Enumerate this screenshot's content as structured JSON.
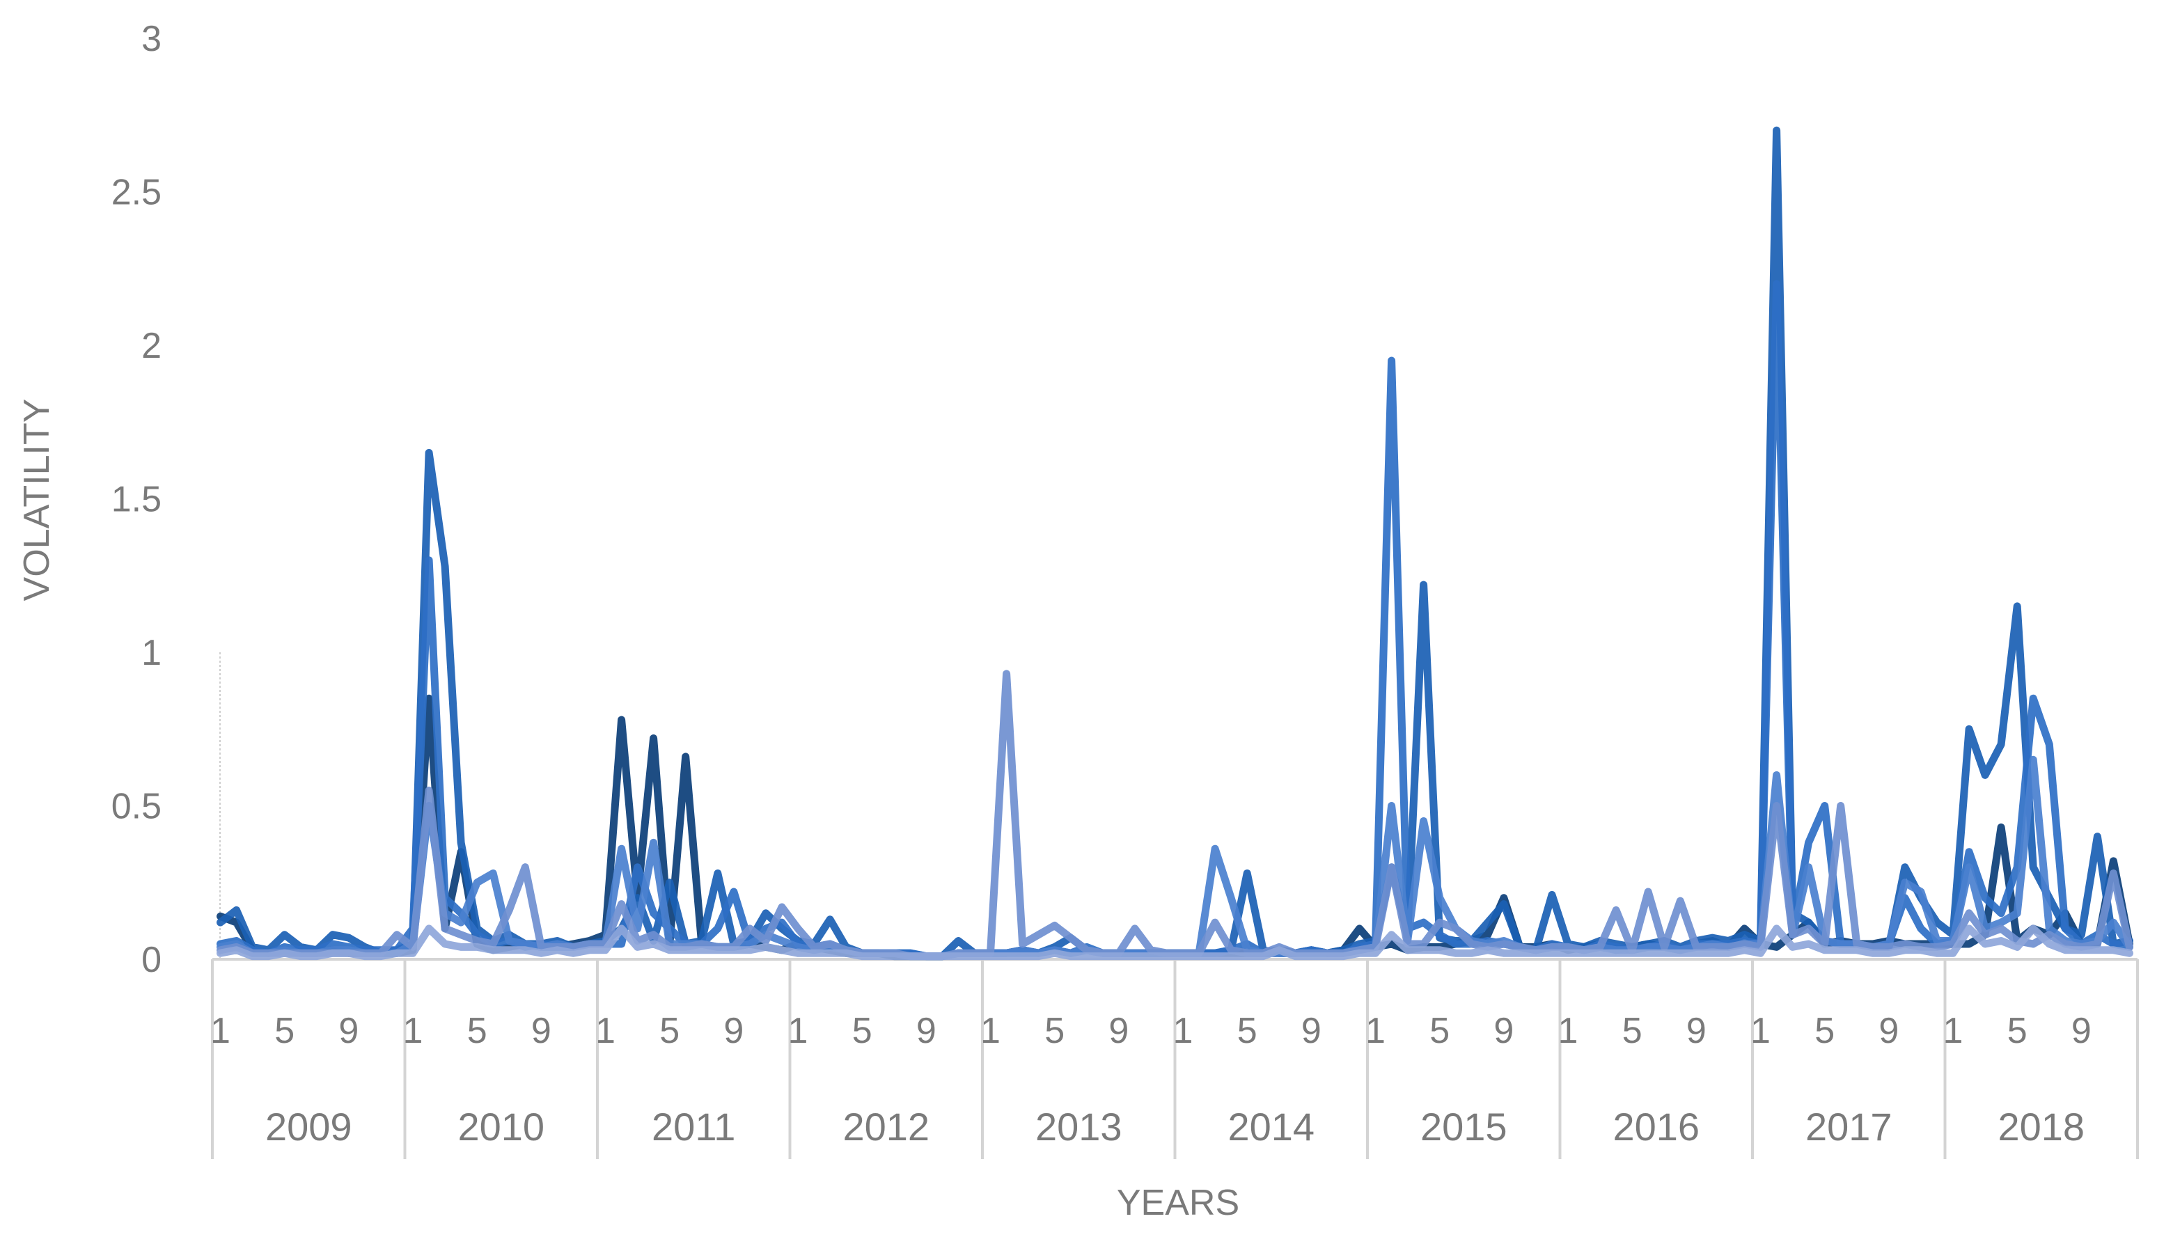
{
  "chart_data": {
    "type": "line",
    "title": "",
    "xlabel": "YEARS",
    "ylabel": "VOLATILITY",
    "ylim": [
      0,
      3
    ],
    "yticks": [
      "0",
      "0.5",
      "1",
      "1.5",
      "2",
      "2.5",
      "3"
    ],
    "years": [
      "2009",
      "2010",
      "2011",
      "2012",
      "2013",
      "2014",
      "2015",
      "2016",
      "2017",
      "2018"
    ],
    "month_ticks": [
      "1",
      "5",
      "9"
    ],
    "months_per_year": 12,
    "grid": false,
    "legend": "none",
    "colors": [
      "#0b3e78",
      "#1a5fb4",
      "#2e6fc6",
      "#4a80cf",
      "#6f8fd0",
      "#8ea6da",
      "#aebde3",
      "#c6d1ea"
    ],
    "series": [
      {
        "values": [
          0.14,
          0.12,
          0.03,
          0.02,
          0.03,
          0.02,
          0.02,
          0.03,
          0.02,
          0.02,
          0.02,
          0.02,
          0.03,
          0.85,
          0.1,
          0.35,
          0.05,
          0.03,
          0.04,
          0.05,
          0.04,
          0.04,
          0.05,
          0.06,
          0.08,
          0.78,
          0.2,
          0.72,
          0.05,
          0.66,
          0.05,
          0.04,
          0.04,
          0.05,
          0.04,
          0.03,
          0.05,
          0.04,
          0.03,
          0.02,
          0.02,
          0.02,
          0.01,
          0.01,
          0.01,
          0.01,
          0.02,
          0.02,
          0.02,
          0.02,
          0.03,
          0.02,
          0.03,
          0.02,
          0.03,
          0.02,
          0.02,
          0.02,
          0.02,
          0.02,
          0.02,
          0.02,
          0.02,
          0.02,
          0.02,
          0.02,
          0.03,
          0.02,
          0.03,
          0.02,
          0.03,
          0.1,
          0.04,
          0.05,
          0.03,
          0.04,
          0.04,
          0.05,
          0.06,
          0.08,
          0.2,
          0.04,
          0.04,
          0.05,
          0.03,
          0.04,
          0.05,
          0.03,
          0.04,
          0.05,
          0.04,
          0.03,
          0.05,
          0.06,
          0.04,
          0.1,
          0.05,
          0.04,
          0.08,
          0.12,
          0.05,
          0.06,
          0.05,
          0.05,
          0.06,
          0.05,
          0.05,
          0.05,
          0.05,
          0.05,
          0.08,
          0.43,
          0.06,
          0.1,
          0.08,
          0.15,
          0.05,
          0.05,
          0.32,
          0.05
        ]
      },
      {
        "values": [
          0.12,
          0.16,
          0.04,
          0.03,
          0.08,
          0.04,
          0.03,
          0.08,
          0.07,
          0.04,
          0.02,
          0.03,
          0.05,
          1.65,
          1.28,
          0.38,
          0.1,
          0.06,
          0.08,
          0.05,
          0.05,
          0.06,
          0.04,
          0.05,
          0.06,
          0.1,
          0.2,
          0.06,
          0.25,
          0.05,
          0.06,
          0.28,
          0.05,
          0.06,
          0.15,
          0.1,
          0.06,
          0.05,
          0.13,
          0.04,
          0.02,
          0.02,
          0.02,
          0.02,
          0.01,
          0.01,
          0.06,
          0.02,
          0.02,
          0.02,
          0.03,
          0.02,
          0.04,
          0.07,
          0.03,
          0.02,
          0.02,
          0.02,
          0.02,
          0.02,
          0.02,
          0.02,
          0.02,
          0.03,
          0.28,
          0.03,
          0.02,
          0.02,
          0.03,
          0.02,
          0.03,
          0.05,
          0.06,
          0.3,
          0.08,
          1.22,
          0.07,
          0.06,
          0.06,
          0.12,
          0.18,
          0.04,
          0.03,
          0.21,
          0.05,
          0.04,
          0.06,
          0.05,
          0.04,
          0.05,
          0.06,
          0.04,
          0.06,
          0.07,
          0.06,
          0.08,
          0.06,
          2.7,
          0.15,
          0.12,
          0.06,
          0.05,
          0.05,
          0.04,
          0.04,
          0.3,
          0.2,
          0.12,
          0.08,
          0.75,
          0.6,
          0.7,
          1.15,
          0.3,
          0.2,
          0.1,
          0.08,
          0.4,
          0.05,
          0.06
        ]
      },
      {
        "values": [
          0.05,
          0.06,
          0.03,
          0.02,
          0.04,
          0.03,
          0.03,
          0.05,
          0.04,
          0.03,
          0.03,
          0.03,
          0.1,
          1.3,
          0.2,
          0.15,
          0.08,
          0.05,
          0.06,
          0.04,
          0.05,
          0.04,
          0.04,
          0.05,
          0.05,
          0.05,
          0.3,
          0.15,
          0.1,
          0.05,
          0.05,
          0.1,
          0.22,
          0.05,
          0.1,
          0.12,
          0.05,
          0.04,
          0.05,
          0.03,
          0.02,
          0.02,
          0.02,
          0.02,
          0.01,
          0.01,
          0.02,
          0.02,
          0.02,
          0.02,
          0.02,
          0.02,
          0.03,
          0.02,
          0.04,
          0.02,
          0.02,
          0.02,
          0.02,
          0.02,
          0.02,
          0.02,
          0.02,
          0.03,
          0.05,
          0.02,
          0.02,
          0.02,
          0.03,
          0.02,
          0.02,
          0.04,
          0.05,
          1.95,
          0.1,
          0.12,
          0.08,
          0.05,
          0.05,
          0.06,
          0.05,
          0.04,
          0.03,
          0.05,
          0.04,
          0.03,
          0.05,
          0.04,
          0.03,
          0.04,
          0.05,
          0.03,
          0.05,
          0.05,
          0.05,
          0.06,
          0.05,
          2.2,
          0.1,
          0.38,
          0.5,
          0.05,
          0.05,
          0.04,
          0.05,
          0.2,
          0.1,
          0.05,
          0.06,
          0.35,
          0.2,
          0.15,
          0.3,
          0.85,
          0.7,
          0.1,
          0.05,
          0.08,
          0.05,
          0.04
        ]
      },
      {
        "values": [
          0.04,
          0.05,
          0.02,
          0.02,
          0.03,
          0.02,
          0.02,
          0.03,
          0.03,
          0.02,
          0.02,
          0.02,
          0.05,
          0.5,
          0.15,
          0.12,
          0.25,
          0.28,
          0.06,
          0.05,
          0.04,
          0.05,
          0.04,
          0.05,
          0.05,
          0.36,
          0.1,
          0.38,
          0.05,
          0.05,
          0.05,
          0.04,
          0.04,
          0.05,
          0.08,
          0.06,
          0.04,
          0.03,
          0.04,
          0.03,
          0.02,
          0.02,
          0.02,
          0.01,
          0.01,
          0.01,
          0.02,
          0.02,
          0.02,
          0.02,
          0.03,
          0.02,
          0.03,
          0.02,
          0.03,
          0.02,
          0.02,
          0.02,
          0.02,
          0.02,
          0.02,
          0.02,
          0.36,
          0.2,
          0.03,
          0.02,
          0.02,
          0.02,
          0.02,
          0.02,
          0.02,
          0.03,
          0.04,
          0.5,
          0.06,
          0.45,
          0.2,
          0.1,
          0.06,
          0.05,
          0.06,
          0.04,
          0.03,
          0.04,
          0.04,
          0.03,
          0.04,
          0.03,
          0.03,
          0.04,
          0.04,
          0.03,
          0.04,
          0.05,
          0.04,
          0.05,
          0.05,
          0.6,
          0.08,
          0.3,
          0.06,
          0.05,
          0.05,
          0.04,
          0.05,
          0.25,
          0.22,
          0.06,
          0.06,
          0.3,
          0.1,
          0.12,
          0.15,
          0.65,
          0.1,
          0.06,
          0.05,
          0.06,
          0.12,
          0.04
        ]
      },
      {
        "values": [
          0.03,
          0.04,
          0.02,
          0.02,
          0.02,
          0.02,
          0.02,
          0.02,
          0.02,
          0.02,
          0.02,
          0.08,
          0.04,
          0.55,
          0.1,
          0.08,
          0.06,
          0.05,
          0.16,
          0.3,
          0.04,
          0.04,
          0.04,
          0.05,
          0.05,
          0.18,
          0.06,
          0.08,
          0.04,
          0.04,
          0.05,
          0.04,
          0.04,
          0.1,
          0.06,
          0.17,
          0.1,
          0.04,
          0.05,
          0.03,
          0.02,
          0.02,
          0.02,
          0.01,
          0.01,
          0.01,
          0.02,
          0.02,
          0.02,
          0.93,
          0.05,
          0.08,
          0.11,
          0.07,
          0.03,
          0.02,
          0.02,
          0.1,
          0.03,
          0.02,
          0.02,
          0.02,
          0.12,
          0.03,
          0.02,
          0.02,
          0.04,
          0.02,
          0.02,
          0.02,
          0.02,
          0.03,
          0.04,
          0.3,
          0.05,
          0.05,
          0.12,
          0.1,
          0.05,
          0.04,
          0.05,
          0.04,
          0.03,
          0.04,
          0.04,
          0.03,
          0.04,
          0.16,
          0.03,
          0.22,
          0.04,
          0.19,
          0.04,
          0.04,
          0.04,
          0.05,
          0.04,
          0.5,
          0.08,
          0.1,
          0.05,
          0.5,
          0.05,
          0.04,
          0.04,
          0.05,
          0.04,
          0.04,
          0.05,
          0.15,
          0.08,
          0.1,
          0.06,
          0.05,
          0.08,
          0.05,
          0.04,
          0.05,
          0.28,
          0.04
        ]
      },
      {
        "values": [
          0.02,
          0.03,
          0.01,
          0.01,
          0.02,
          0.01,
          0.01,
          0.02,
          0.02,
          0.01,
          0.01,
          0.02,
          0.02,
          0.1,
          0.05,
          0.04,
          0.04,
          0.03,
          0.03,
          0.03,
          0.02,
          0.03,
          0.02,
          0.03,
          0.03,
          0.1,
          0.04,
          0.05,
          0.03,
          0.03,
          0.03,
          0.03,
          0.03,
          0.03,
          0.04,
          0.03,
          0.02,
          0.02,
          0.02,
          0.02,
          0.01,
          0.01,
          0.01,
          0.01,
          0.01,
          0.01,
          0.01,
          0.01,
          0.01,
          0.01,
          0.01,
          0.01,
          0.02,
          0.01,
          0.01,
          0.01,
          0.01,
          0.01,
          0.01,
          0.01,
          0.01,
          0.01,
          0.01,
          0.01,
          0.01,
          0.01,
          0.03,
          0.01,
          0.01,
          0.01,
          0.01,
          0.02,
          0.02,
          0.08,
          0.03,
          0.03,
          0.03,
          0.02,
          0.02,
          0.03,
          0.02,
          0.02,
          0.02,
          0.02,
          0.02,
          0.02,
          0.02,
          0.02,
          0.02,
          0.02,
          0.02,
          0.02,
          0.02,
          0.02,
          0.02,
          0.03,
          0.02,
          0.1,
          0.04,
          0.05,
          0.03,
          0.03,
          0.03,
          0.02,
          0.02,
          0.03,
          0.03,
          0.02,
          0.02,
          0.1,
          0.05,
          0.06,
          0.04,
          0.1,
          0.05,
          0.03,
          0.03,
          0.03,
          0.03,
          0.02
        ]
      }
    ]
  }
}
